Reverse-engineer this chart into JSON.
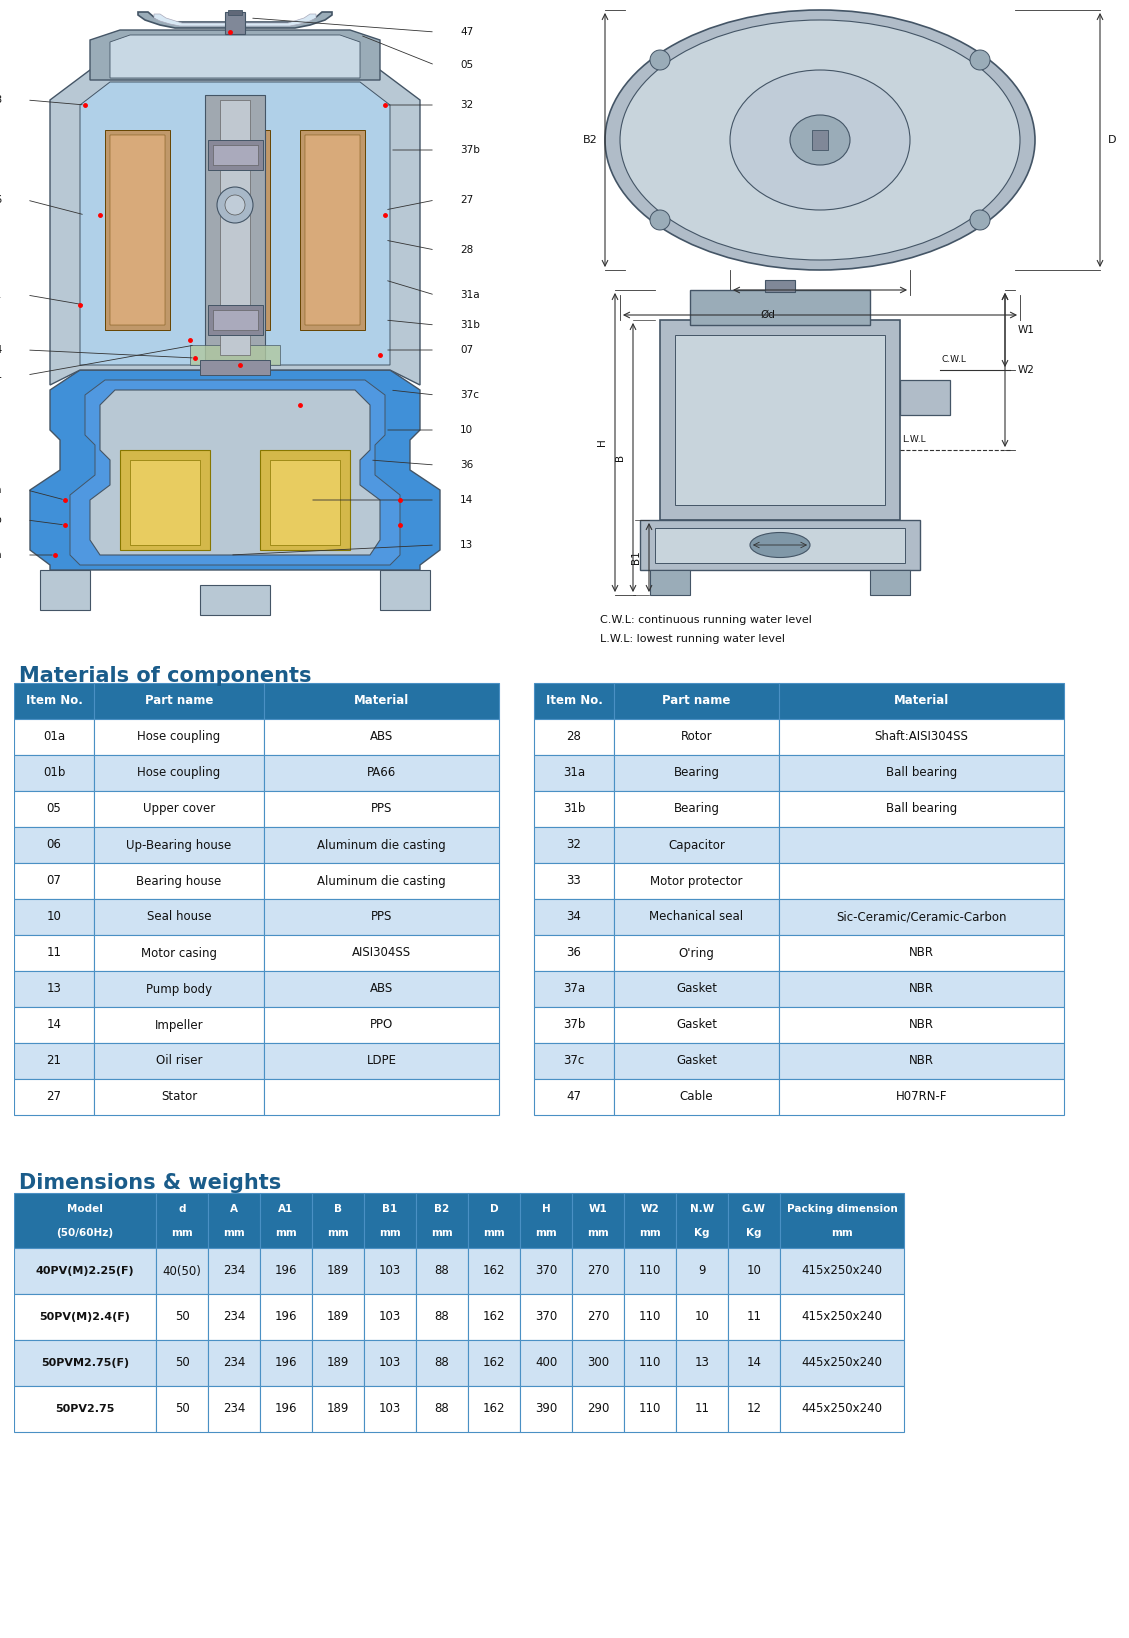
{
  "bg_color": "#ffffff",
  "title_materials": "Materials of components",
  "title_dimensions": "Dimensions & weights",
  "title_color": "#1a5c8a",
  "header_bg": "#2472a4",
  "header_fg": "#ffffff",
  "row_even_bg": "#cfe2f3",
  "row_odd_bg": "#ffffff",
  "border_color": "#4a90c4",
  "materials_left": [
    [
      "Item No.",
      "Part name",
      "Material"
    ],
    [
      "01a",
      "Hose coupling",
      "ABS"
    ],
    [
      "01b",
      "Hose coupling",
      "PA66"
    ],
    [
      "05",
      "Upper cover",
      "PPS"
    ],
    [
      "06",
      "Up-Bearing house",
      "Aluminum die casting"
    ],
    [
      "07",
      "Bearing house",
      "Aluminum die casting"
    ],
    [
      "10",
      "Seal house",
      "PPS"
    ],
    [
      "11",
      "Motor casing",
      "AISI304SS"
    ],
    [
      "13",
      "Pump body",
      "ABS"
    ],
    [
      "14",
      "Impeller",
      "PPO"
    ],
    [
      "21",
      "Oil riser",
      "LDPE"
    ],
    [
      "27",
      "Stator",
      ""
    ]
  ],
  "materials_right": [
    [
      "Item No.",
      "Part name",
      "Material"
    ],
    [
      "28",
      "Rotor",
      "Shaft:AISI304SS"
    ],
    [
      "31a",
      "Bearing",
      "Ball bearing"
    ],
    [
      "31b",
      "Bearing",
      "Ball bearing"
    ],
    [
      "32",
      "Capacitor",
      ""
    ],
    [
      "33",
      "Motor protector",
      ""
    ],
    [
      "34",
      "Mechanical seal",
      "Sic-Ceramic/Ceramic-Carbon"
    ],
    [
      "36",
      "O'ring",
      "NBR"
    ],
    [
      "37a",
      "Gasket",
      "NBR"
    ],
    [
      "37b",
      "Gasket",
      "NBR"
    ],
    [
      "37c",
      "Gasket",
      "NBR"
    ],
    [
      "47",
      "Cable",
      "H07RN-F"
    ]
  ],
  "dim_headers": [
    "Model\n(50/60Hz)",
    "d\nmm",
    "A\nmm",
    "A1\nmm",
    "B\nmm",
    "B1\nmm",
    "B2\nmm",
    "D\nmm",
    "H\nmm",
    "W1\nmm",
    "W2\nmm",
    "N.W\nKg",
    "G.W\nKg",
    "Packing dimension\nmm"
  ],
  "dim_rows": [
    [
      "40PV(M)2.25(F)",
      "40(50)",
      "234",
      "196",
      "189",
      "103",
      "88",
      "162",
      "370",
      "270",
      "110",
      "9",
      "10",
      "415x250x240"
    ],
    [
      "50PV(M)2.4(F)",
      "50",
      "234",
      "196",
      "189",
      "103",
      "88",
      "162",
      "370",
      "270",
      "110",
      "10",
      "11",
      "415x250x240"
    ],
    [
      "50PVM2.75(F)",
      "50",
      "234",
      "196",
      "189",
      "103",
      "88",
      "162",
      "400",
      "300",
      "110",
      "13",
      "14",
      "445x250x240"
    ],
    [
      "50PV2.75",
      "50",
      "234",
      "196",
      "189",
      "103",
      "88",
      "162",
      "390",
      "290",
      "110",
      "11",
      "12",
      "445x250x240"
    ]
  ],
  "cwl_text": "C.W.L: continuous running water level",
  "lwl_text": "L.W.L: lowest running water level"
}
